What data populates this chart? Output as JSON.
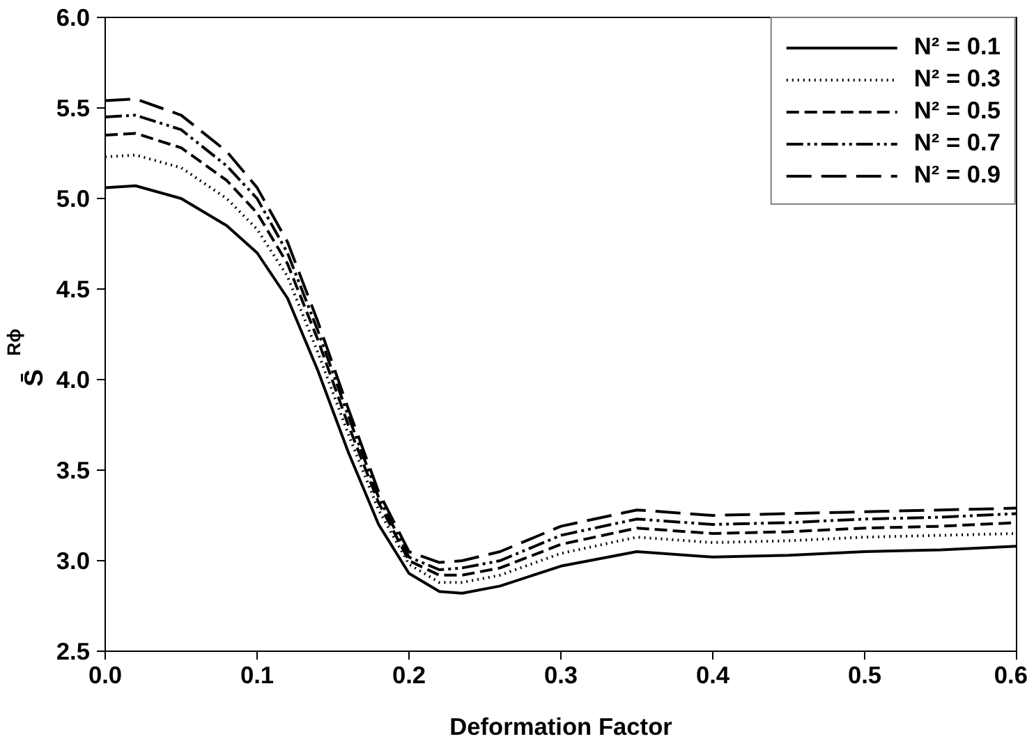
{
  "chart_data": {
    "type": "line",
    "xlabel": "Deformation Factor",
    "ylabel": "S̄$_{Rϕ}$",
    "x": [
      0,
      0.02,
      0.05,
      0.08,
      0.1,
      0.12,
      0.14,
      0.16,
      0.18,
      0.2,
      0.22,
      0.235,
      0.26,
      0.3,
      0.35,
      0.4,
      0.45,
      0.5,
      0.55,
      0.6
    ],
    "series": [
      {
        "name": "N² = 0.1",
        "color": "#000000",
        "line_style": "solid",
        "values": [
          5.06,
          5.07,
          5.0,
          4.85,
          4.7,
          4.45,
          4.05,
          3.6,
          3.2,
          2.93,
          2.83,
          2.82,
          2.86,
          2.97,
          3.05,
          3.02,
          3.03,
          3.05,
          3.06,
          3.08
        ]
      },
      {
        "name": "N² = 0.3",
        "color": "#000000",
        "line_style": "dotted",
        "values": [
          5.23,
          5.24,
          5.17,
          5.0,
          4.83,
          4.57,
          4.15,
          3.7,
          3.28,
          2.98,
          2.88,
          2.88,
          2.92,
          3.04,
          3.13,
          3.1,
          3.11,
          3.13,
          3.14,
          3.15
        ]
      },
      {
        "name": "N² = 0.5",
        "color": "#000000",
        "line_style": "dashed",
        "values": [
          5.35,
          5.36,
          5.28,
          5.1,
          4.92,
          4.64,
          4.22,
          3.75,
          3.32,
          3.0,
          2.92,
          2.92,
          2.96,
          3.09,
          3.18,
          3.15,
          3.16,
          3.18,
          3.19,
          3.21
        ]
      },
      {
        "name": "N² = 0.7",
        "color": "#000000",
        "line_style": "dashdotdot",
        "values": [
          5.45,
          5.46,
          5.38,
          5.18,
          5.0,
          4.7,
          4.27,
          3.8,
          3.35,
          3.02,
          2.95,
          2.96,
          3.0,
          3.14,
          3.23,
          3.2,
          3.21,
          3.23,
          3.24,
          3.26
        ]
      },
      {
        "name": "N² = 0.9",
        "color": "#000000",
        "line_style": "longdash",
        "values": [
          5.54,
          5.55,
          5.46,
          5.26,
          5.06,
          4.76,
          4.32,
          3.84,
          3.38,
          3.05,
          2.99,
          3.0,
          3.05,
          3.19,
          3.28,
          3.25,
          3.26,
          3.27,
          3.28,
          3.29
        ]
      }
    ],
    "xlim": [
      0,
      0.6
    ],
    "xticks": [
      {
        "value": 0,
        "label": "0.0"
      },
      0.1,
      0.2,
      0.3,
      0.4,
      0.5,
      0.6
    ],
    "ylim": [
      2.5,
      6.0
    ],
    "yticks": [
      2.5,
      {
        "value": 3,
        "label": "3.0"
      },
      3.5,
      {
        "value": 4,
        "label": "4.0"
      },
      4.5,
      {
        "value": 5,
        "label": "5.0"
      },
      5.5,
      {
        "value": 6,
        "label": "6.0"
      }
    ],
    "grid": false,
    "legend": "top right",
    "marker": "none"
  }
}
